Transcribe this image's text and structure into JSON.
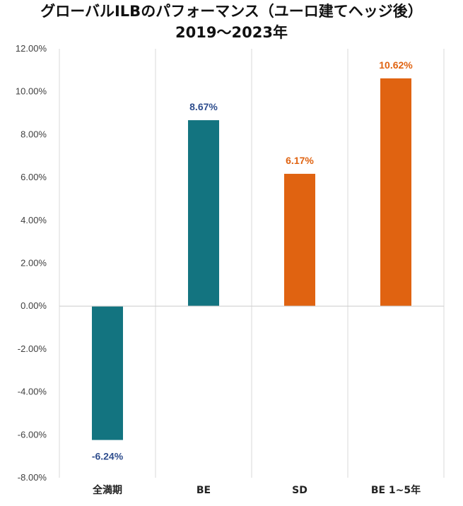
{
  "chart_data": {
    "type": "bar",
    "title": "グローバルILBのパフォーマンス（ユーロ建てヘッジ後）",
    "subtitle": "2019～2023年",
    "categories": [
      "全満期",
      "BE",
      "SD",
      "BE 1~5年"
    ],
    "values": [
      -6.24,
      8.67,
      6.17,
      10.62
    ],
    "data_labels": [
      "-6.24%",
      "8.67%",
      "6.17%",
      "10.62%"
    ],
    "bar_colors": [
      "#137480",
      "#137480",
      "#E06311",
      "#E06311"
    ],
    "label_colors": [
      "#2F4E8E",
      "#2F4E8E",
      "#E06311",
      "#E06311"
    ],
    "ylim": [
      -8,
      12
    ],
    "yticks": [
      -8,
      -6,
      -4,
      -2,
      0,
      2,
      4,
      6,
      8,
      10,
      12
    ],
    "ytick_labels": [
      "-8.00%",
      "-6.00%",
      "-4.00%",
      "-2.00%",
      "0.00%",
      "2.00%",
      "4.00%",
      "6.00%",
      "8.00%",
      "10.00%",
      "12.00%"
    ],
    "grid": "vertical category separators",
    "legend": "none"
  }
}
